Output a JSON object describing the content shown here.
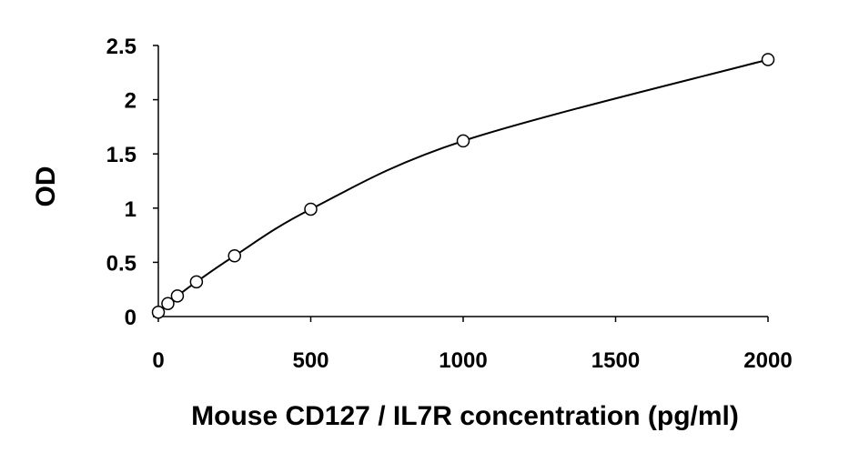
{
  "chart_data": {
    "type": "scatter",
    "title": "",
    "xlabel": "Mouse CD127 / IL7R concentration (pg/ml)",
    "ylabel": "OD",
    "xlim": [
      0,
      2000
    ],
    "ylim": [
      0,
      2.5
    ],
    "xticks": [
      0,
      500,
      1000,
      1500,
      2000
    ],
    "yticks": [
      0,
      0.5,
      1,
      1.5,
      2,
      2.5
    ],
    "xtick_labels": [
      "0",
      "500",
      "1000",
      "1500",
      "2000"
    ],
    "ytick_labels": [
      "0",
      "0.5",
      "1",
      "1.5",
      "2",
      "2.5"
    ],
    "grid": false,
    "legend": "none",
    "trendline": "smooth fitted curve",
    "series": [
      {
        "x": [
          0,
          31.25,
          62.5,
          125,
          250,
          500,
          1000,
          2000
        ],
        "y": [
          0.04,
          0.12,
          0.19,
          0.32,
          0.56,
          0.99,
          1.62,
          2.37
        ]
      }
    ]
  }
}
